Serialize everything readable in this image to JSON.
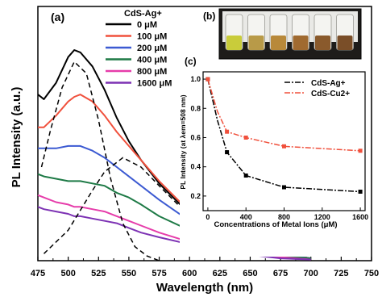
{
  "chart_data": [
    {
      "panel": "(a)",
      "type": "line",
      "xlabel": "Wavelength (nm)",
      "ylabel": "PL Intensity (a.u.)",
      "xlim": [
        475,
        750
      ],
      "ylim": [
        0,
        1
      ],
      "xticks": [
        "475",
        "500",
        "525",
        "550",
        "575",
        "600",
        "625",
        "650",
        "675",
        "700",
        "725",
        "750"
      ],
      "legend_title": "CdS-Ag+",
      "legend_position": "top-right",
      "x": [
        475,
        480,
        490,
        500,
        505,
        510,
        520,
        530,
        540,
        550,
        560,
        575,
        600,
        625,
        650,
        675,
        700
      ],
      "series": [
        {
          "name": "0 μM",
          "color": "#000000",
          "values": [
            0.71,
            0.69,
            0.76,
            0.87,
            0.9,
            0.89,
            0.83,
            0.73,
            0.61,
            0.51,
            0.43,
            0.33,
            0.2,
            0.12,
            0.07,
            0.03,
            0.01
          ]
        },
        {
          "name": "100 μM",
          "color": "#f0503c",
          "values": [
            0.57,
            0.57,
            0.62,
            0.68,
            0.7,
            0.71,
            0.68,
            0.62,
            0.55,
            0.49,
            0.43,
            0.34,
            0.21,
            0.13,
            0.08,
            0.03,
            0.01
          ]
        },
        {
          "name": "200 μM",
          "color": "#3c5ad2",
          "values": [
            0.48,
            0.48,
            0.48,
            0.49,
            0.49,
            0.49,
            0.47,
            0.44,
            0.4,
            0.36,
            0.32,
            0.26,
            0.17,
            0.1,
            0.06,
            0.025,
            0.01
          ]
        },
        {
          "name": "400 μM",
          "color": "#1e7a46",
          "values": [
            0.37,
            0.36,
            0.35,
            0.34,
            0.34,
            0.34,
            0.33,
            0.32,
            0.29,
            0.27,
            0.24,
            0.19,
            0.13,
            0.08,
            0.05,
            0.02,
            0.01
          ]
        },
        {
          "name": "800 μM",
          "color": "#e63caa",
          "values": [
            0.28,
            0.27,
            0.25,
            0.24,
            0.23,
            0.23,
            0.22,
            0.21,
            0.19,
            0.17,
            0.15,
            0.12,
            0.08,
            0.05,
            0.03,
            0.015,
            0.005
          ]
        },
        {
          "name": "1600 μM",
          "color": "#7d32b4",
          "values": [
            0.23,
            0.22,
            0.21,
            0.2,
            0.19,
            0.19,
            0.18,
            0.17,
            0.16,
            0.14,
            0.12,
            0.1,
            0.07,
            0.04,
            0.025,
            0.01,
            0.005
          ]
        }
      ],
      "dashed_components": [
        {
          "x": [
            478,
            485,
            495,
            505,
            515,
            525,
            535,
            545,
            555,
            565,
            575
          ],
          "values": [
            0.4,
            0.55,
            0.74,
            0.85,
            0.8,
            0.6,
            0.35,
            0.16,
            0.06,
            0.02,
            0.0
          ]
        },
        {
          "x": [
            480,
            500,
            520,
            530,
            545,
            560,
            575,
            600,
            625,
            650
          ],
          "values": [
            0.03,
            0.13,
            0.3,
            0.38,
            0.44,
            0.4,
            0.32,
            0.19,
            0.1,
            0.04
          ]
        }
      ]
    },
    {
      "panel": "(c)",
      "type": "line",
      "xlabel": "Concentrations of Metal Ions (μM)",
      "ylabel": "PL Intensity (at λem=508 nm)",
      "xlim": [
        -50,
        1650
      ],
      "ylim": [
        0.1,
        1.05
      ],
      "xticks": [
        0,
        400,
        800,
        1200,
        1600
      ],
      "yticks": [
        "0.2",
        "0.4",
        "0.6",
        "0.8",
        "1.0"
      ],
      "legend_position": "top-right",
      "x": [
        0,
        100,
        200,
        400,
        800,
        1600
      ],
      "series": [
        {
          "name": "CdS-Ag+",
          "color": "#000000",
          "values": [
            1.0,
            0.72,
            0.5,
            0.34,
            0.26,
            0.23
          ]
        },
        {
          "name": "CdS-Cu2+",
          "color": "#f0503c",
          "values": [
            1.0,
            0.78,
            0.64,
            0.6,
            0.54,
            0.51
          ]
        }
      ]
    }
  ],
  "inset_photo": {
    "label": "(b)",
    "vial_count": 6,
    "colors": [
      "#c9cc3a",
      "#b89a48",
      "#b8893a",
      "#a06a30",
      "#8a5a2c",
      "#7a4e28"
    ]
  }
}
